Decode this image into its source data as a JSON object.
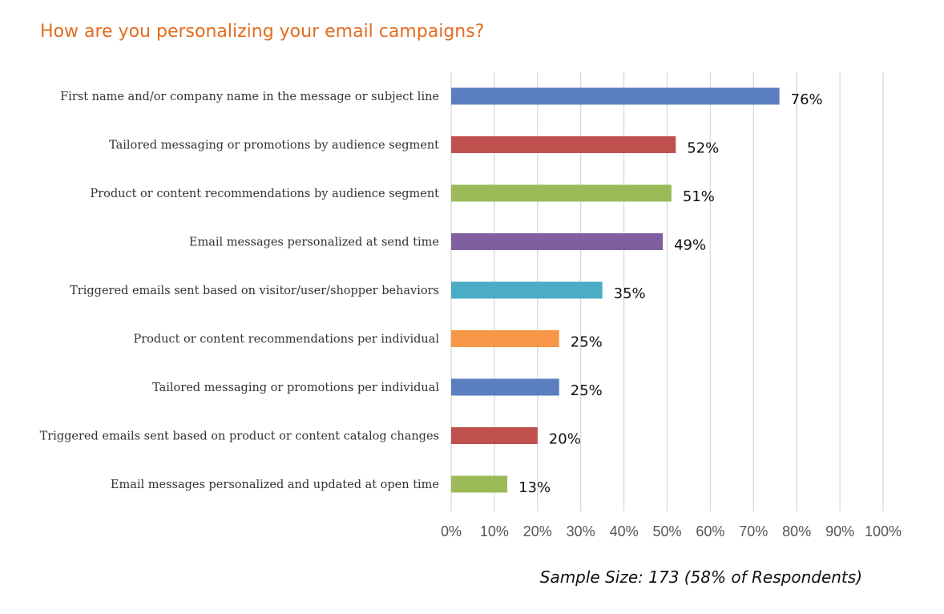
{
  "chart_data": {
    "type": "bar",
    "orientation": "horizontal",
    "title": "How are you personalizing your email campaigns?",
    "categories": [
      "First name and/or company name in the message or subject line",
      "Tailored messaging or promotions by audience segment",
      "Product or content recommendations by audience segment",
      "Email messages personalized at send time",
      "Triggered emails sent based on visitor/user/shopper behaviors",
      "Product or content recommendations per individual",
      "Tailored messaging or promotions per individual",
      "Triggered emails sent based on product or content catalog changes",
      "Email messages personalized and updated at open time"
    ],
    "values": [
      76,
      52,
      51,
      49,
      35,
      25,
      25,
      20,
      13
    ],
    "data_labels": [
      "76%",
      "52%",
      "51%",
      "49%",
      "35%",
      "25%",
      "25%",
      "20%",
      "13%"
    ],
    "bar_colors": [
      "#5a7ebf",
      "#c0504d",
      "#9bbb59",
      "#7f5fa0",
      "#4bacc6",
      "#f79646",
      "#5a7ebf",
      "#c0504d",
      "#9bbb59"
    ],
    "xlim": [
      0,
      100
    ],
    "x_ticks": [
      0,
      10,
      20,
      30,
      40,
      50,
      60,
      70,
      80,
      90,
      100
    ],
    "x_tick_labels": [
      "0%",
      "10%",
      "20%",
      "30%",
      "40%",
      "50%",
      "60%",
      "70%",
      "80%",
      "90%",
      "100%"
    ],
    "grid": "vertical",
    "xlabel": "",
    "ylabel": "",
    "footnote": "Sample Size: 173 (58% of Respondents)",
    "title_color": "#e46c1f"
  }
}
